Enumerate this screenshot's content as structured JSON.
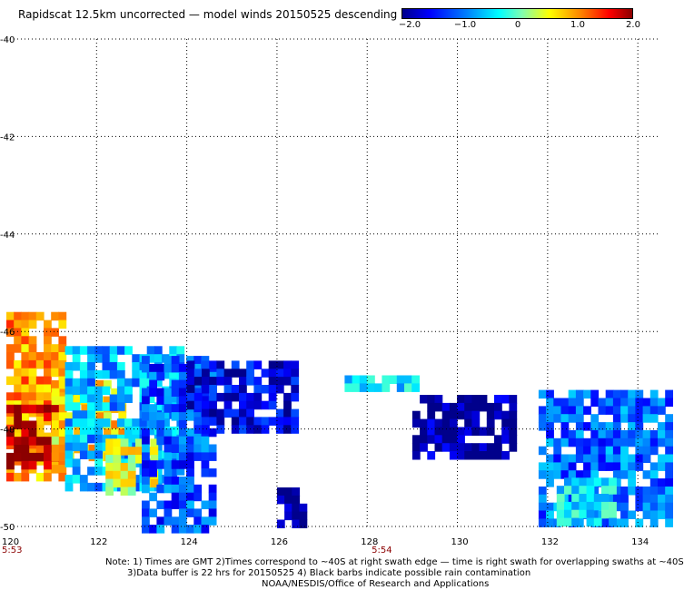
{
  "title": "Rapidscat 12.5km uncorrected — model winds 20150525 descending",
  "colorbar": {
    "ticks": [
      "−2.0",
      "−1.0",
      "0",
      "1.0",
      "2.0"
    ],
    "min": -2.0,
    "max": 2.0
  },
  "chart_data": {
    "type": "heatmap",
    "title": "Rapidscat 12.5km uncorrected — model winds 20150525 descending",
    "x_range": [
      120,
      134.5
    ],
    "y_range": [
      -50,
      -40
    ],
    "x_ticks": [
      "120",
      "122",
      "124",
      "126",
      "128",
      "130",
      "132",
      "134"
    ],
    "y_ticks": [
      "-40",
      "-42",
      "-44",
      "-46",
      "-48",
      "-50"
    ],
    "grid": true,
    "time_labels": [
      {
        "x": 120,
        "label": "5:53"
      },
      {
        "x": 128.2,
        "label": "5:54"
      }
    ],
    "regions": [
      {
        "lon": [
          120,
          121.3
        ],
        "lat": [
          -49,
          -45.6
        ],
        "value": 0.9
      },
      {
        "lon": [
          120,
          121.0
        ],
        "lat": [
          -48.8,
          -47.5
        ],
        "value": 2.0
      },
      {
        "lon": [
          121.0,
          122.5
        ],
        "lat": [
          -48.5,
          -47.0
        ],
        "value": 0.6
      },
      {
        "lon": [
          121.3,
          123.8
        ],
        "lat": [
          -49.2,
          -46.3
        ],
        "value": -0.8
      },
      {
        "lon": [
          122.2,
          123.2
        ],
        "lat": [
          -49.2,
          -48.2
        ],
        "value": 0.4
      },
      {
        "lon": [
          123.0,
          124.6
        ],
        "lat": [
          -50,
          -46.5
        ],
        "value": -1.2
      },
      {
        "lon": [
          124.0,
          126.4
        ],
        "lat": [
          -48.0,
          -46.6
        ],
        "value": -1.6
      },
      {
        "lon": [
          126.0,
          126.6
        ],
        "lat": [
          -49.9,
          -49.2
        ],
        "value": -2.0
      },
      {
        "lon": [
          127.5,
          129.0
        ],
        "lat": [
          -47.2,
          -46.9
        ],
        "value": -0.6
      },
      {
        "lon": [
          129.0,
          131.3
        ],
        "lat": [
          -48.5,
          -47.3
        ],
        "value": -1.9
      },
      {
        "lon": [
          131.8,
          134.7
        ],
        "lat": [
          -50,
          -47.2
        ],
        "value": -1.1
      },
      {
        "lon": [
          132.2,
          133.5
        ],
        "lat": [
          -49.9,
          -49.0
        ],
        "value": -0.5
      }
    ]
  },
  "notes": {
    "line1": "Note: 1) Times are GMT 2)Times correspond to ~40S at right swath edge — time is right swath for overlapping swaths at ~40S",
    "line2": "3)Data buffer is 22 hrs for 20150525 4) Black barbs indicate possible rain contamination",
    "line3": "NOAA/NESDIS/Office of Research and Applications"
  }
}
